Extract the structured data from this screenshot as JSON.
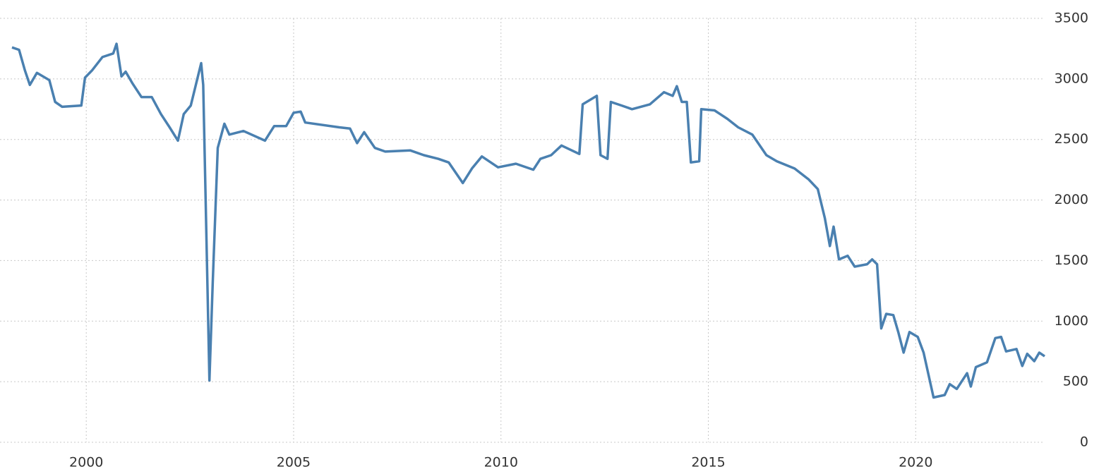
{
  "chart_data": {
    "type": "line",
    "x": [
      1998.21,
      1998.38,
      1998.52,
      1998.64,
      1998.81,
      1999.11,
      1999.25,
      1999.42,
      1999.88,
      1999.97,
      2000.14,
      2000.39,
      2000.65,
      2000.73,
      2000.85,
      2000.95,
      2001.12,
      2001.33,
      2001.58,
      2001.8,
      2002.01,
      2002.21,
      2002.35,
      2002.52,
      2002.77,
      2002.82,
      2002.92,
      2002.97,
      2003.05,
      2003.17,
      2003.33,
      2003.45,
      2003.79,
      2004.31,
      2004.53,
      2004.82,
      2005.0,
      2005.17,
      2005.28,
      2006.1,
      2006.36,
      2006.53,
      2006.7,
      2006.96,
      2007.21,
      2007.81,
      2008.14,
      2008.49,
      2008.74,
      2009.08,
      2009.3,
      2009.54,
      2009.93,
      2010.36,
      2010.78,
      2010.95,
      2011.21,
      2011.46,
      2011.89,
      2011.97,
      2012.31,
      2012.4,
      2012.57,
      2012.65,
      2012.91,
      2013.16,
      2013.59,
      2013.93,
      2014.14,
      2014.24,
      2014.36,
      2014.48,
      2014.58,
      2014.78,
      2014.83,
      2015.15,
      2015.46,
      2015.72,
      2016.06,
      2016.4,
      2016.65,
      2017.08,
      2017.42,
      2017.64,
      2017.81,
      2017.93,
      2018.02,
      2018.15,
      2018.36,
      2018.53,
      2018.83,
      2018.95,
      2019.07,
      2019.17,
      2019.29,
      2019.46,
      2019.58,
      2019.71,
      2019.85,
      2020.05,
      2020.19,
      2020.43,
      2020.7,
      2020.82,
      2020.99,
      2021.24,
      2021.33,
      2021.45,
      2021.72,
      2021.92,
      2022.06,
      2022.18,
      2022.43,
      2022.57,
      2022.69,
      2022.86,
      2022.98,
      2023.11
    ],
    "series": [
      {
        "color": "#4a80b0",
        "values": [
          3260,
          3240,
          3070,
          2950,
          3050,
          2990,
          2810,
          2770,
          2780,
          3010,
          3070,
          3180,
          3210,
          3290,
          3020,
          3060,
          2960,
          2850,
          2850,
          2710,
          2600,
          2490,
          2710,
          2780,
          3130,
          2950,
          1320,
          510,
          1320,
          2430,
          2630,
          2540,
          2570,
          2490,
          2610,
          2610,
          2720,
          2730,
          2640,
          2600,
          2590,
          2470,
          2560,
          2430,
          2400,
          2410,
          2370,
          2340,
          2310,
          2140,
          2260,
          2360,
          2270,
          2300,
          2250,
          2340,
          2370,
          2450,
          2380,
          2790,
          2860,
          2370,
          2340,
          2810,
          2780,
          2750,
          2790,
          2890,
          2860,
          2940,
          2810,
          2810,
          2310,
          2320,
          2750,
          2740,
          2670,
          2600,
          2540,
          2370,
          2320,
          2260,
          2170,
          2090,
          1850,
          1620,
          1780,
          1510,
          1540,
          1450,
          1470,
          1510,
          1470,
          940,
          1060,
          1050,
          910,
          740,
          910,
          870,
          740,
          370,
          390,
          480,
          440,
          570,
          460,
          620,
          660,
          860,
          870,
          750,
          770,
          630,
          730,
          670,
          740,
          710
        ]
      }
    ],
    "xlim": [
      1997.92,
      2023.28
    ],
    "xticks": [
      2000,
      2005,
      2010,
      2015,
      2020
    ],
    "ylim": [
      0,
      3500
    ],
    "yticks": [
      0,
      500,
      1000,
      1500,
      2000,
      2500,
      3000,
      3500
    ],
    "grid": true
  }
}
